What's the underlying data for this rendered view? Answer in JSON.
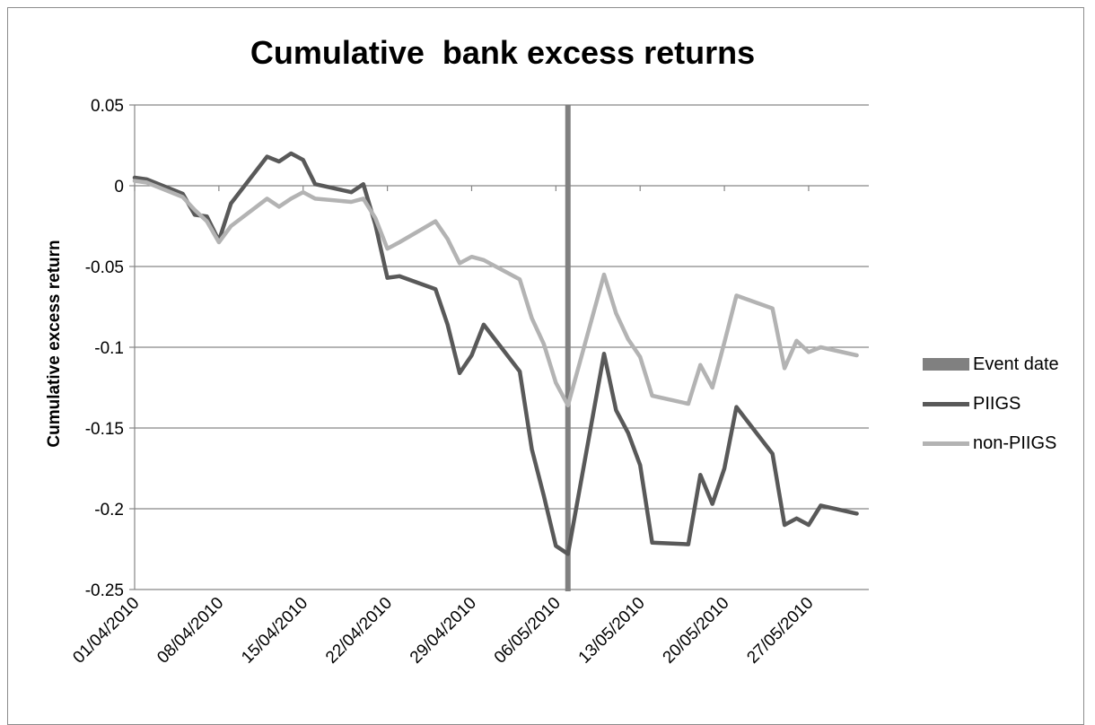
{
  "chart_data": {
    "type": "line",
    "title": "Cumulative  bank excess returns",
    "xlabel": "",
    "ylabel": "Cumulative excess return",
    "ylim": [
      -0.25,
      0.05
    ],
    "yticks": [
      "0.05",
      "0",
      "-0.05",
      "-0.1",
      "-0.15",
      "-0.2",
      "-0.25"
    ],
    "ytick_values": [
      0.05,
      0,
      -0.05,
      -0.1,
      -0.15,
      -0.2,
      -0.25
    ],
    "xticks": [
      "01/04/2010",
      "08/04/2010",
      "15/04/2010",
      "22/04/2010",
      "29/04/2010",
      "06/05/2010",
      "13/05/2010",
      "20/05/2010",
      "27/05/2010"
    ],
    "grid": "horizontal",
    "legend": "right",
    "event_date": "07/05/2010",
    "x": [
      "01/04/2010",
      "02/04/2010",
      "05/04/2010",
      "06/04/2010",
      "07/04/2010",
      "08/04/2010",
      "09/04/2010",
      "12/04/2010",
      "13/04/2010",
      "14/04/2010",
      "15/04/2010",
      "16/04/2010",
      "19/04/2010",
      "20/04/2010",
      "21/04/2010",
      "22/04/2010",
      "23/04/2010",
      "26/04/2010",
      "27/04/2010",
      "28/04/2010",
      "29/04/2010",
      "30/04/2010",
      "03/05/2010",
      "04/05/2010",
      "05/05/2010",
      "06/05/2010",
      "07/05/2010",
      "10/05/2010",
      "11/05/2010",
      "12/05/2010",
      "13/05/2010",
      "14/05/2010",
      "17/05/2010",
      "18/05/2010",
      "19/05/2010",
      "20/05/2010",
      "21/05/2010",
      "24/05/2010",
      "25/05/2010",
      "26/05/2010",
      "27/05/2010",
      "28/05/2010",
      "31/05/2010"
    ],
    "series": [
      {
        "name": "Event date",
        "type": "vertical-line",
        "color": "#808080"
      },
      {
        "name": "PIIGS",
        "color": "#595959",
        "values": [
          0.005,
          0.004,
          -0.005,
          -0.018,
          -0.019,
          -0.034,
          -0.011,
          0.018,
          0.015,
          0.02,
          0.016,
          0.001,
          -0.004,
          0.001,
          -0.024,
          -0.057,
          -0.056,
          -0.064,
          -0.086,
          -0.116,
          -0.105,
          -0.086,
          -0.115,
          -0.163,
          -0.192,
          -0.223,
          -0.228,
          -0.104,
          -0.139,
          -0.153,
          -0.173,
          -0.221,
          -0.222,
          -0.179,
          -0.197,
          -0.175,
          -0.137,
          -0.166,
          -0.21,
          -0.206,
          -0.21,
          -0.198,
          -0.203
        ]
      },
      {
        "name": "non-PIIGS",
        "color": "#b3b3b3",
        "values": [
          0.003,
          0.002,
          -0.007,
          -0.015,
          -0.022,
          -0.035,
          -0.025,
          -0.008,
          -0.013,
          -0.008,
          -0.004,
          -0.008,
          -0.01,
          -0.008,
          -0.02,
          -0.039,
          -0.035,
          -0.022,
          -0.033,
          -0.048,
          -0.044,
          -0.046,
          -0.058,
          -0.082,
          -0.098,
          -0.122,
          -0.136,
          -0.055,
          -0.079,
          -0.095,
          -0.106,
          -0.13,
          -0.135,
          -0.111,
          -0.125,
          -0.097,
          -0.068,
          -0.076,
          -0.113,
          -0.096,
          -0.103,
          -0.1,
          -0.105
        ]
      }
    ]
  }
}
